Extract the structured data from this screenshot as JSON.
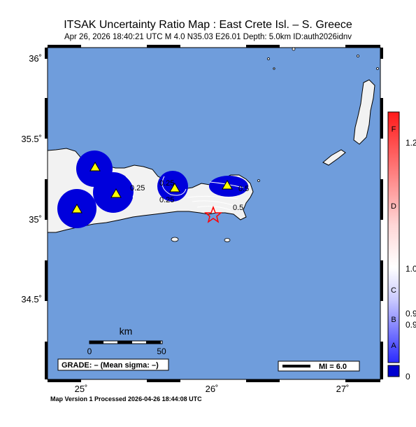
{
  "header": {
    "title": "ITSAK Uncertainty Ratio Map : East Crete Isl. – S. Greece",
    "subtitle": "Apr 26, 2026 18:40:21 UTC   M 4.0   N35.03 E26.01   Depth: 5.0km   ID:auth2026idnv"
  },
  "axes": {
    "lat_labels": [
      "36˚",
      "35.5˚",
      "35˚",
      "34.5˚"
    ],
    "lon_labels": [
      "25˚",
      "26˚",
      "27˚"
    ]
  },
  "contours": {
    "labels": [
      "0.25",
      "0.25",
      "0.25",
      "0.5",
      "0.5"
    ]
  },
  "scalebar": {
    "unit": "km",
    "ticks": [
      "0",
      "50"
    ]
  },
  "grade_box": {
    "text": "GRADE: – (Mean sigma: –)"
  },
  "mi_box": {
    "text": "MI = 6.0"
  },
  "colorbar": {
    "colors": {
      "top": "#ff0000",
      "mid": "#ffffff",
      "bottom": "#0000d0"
    },
    "letters": [
      "F",
      "D",
      "C",
      "B",
      "A"
    ],
    "values": [
      "1.2",
      "1.0",
      "0.9",
      "0.9",
      "0"
    ]
  },
  "colors": {
    "sea": "#6f9ddc",
    "land": "#f2f2f2",
    "high_uncertainty": "#0000dc",
    "epicenter": "#ff0000",
    "station": "#ffff00"
  },
  "icons": {
    "epicenter": "star-icon",
    "station": "triangle-icon"
  },
  "footer": {
    "text": "Map Version 1 Processed 2026-04-26 18:44:08 UTC"
  }
}
